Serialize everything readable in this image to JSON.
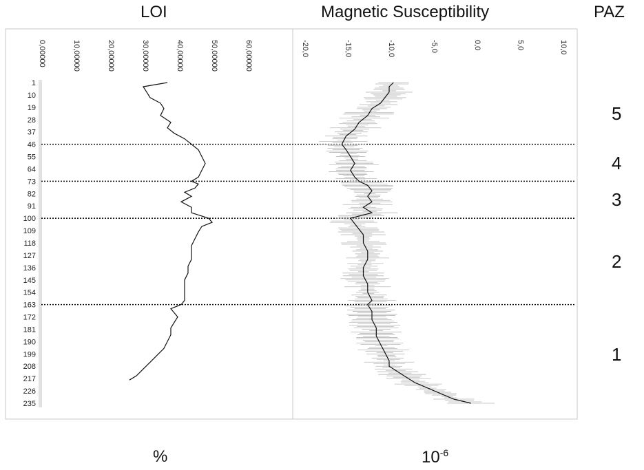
{
  "headers": {
    "loi": "LOI",
    "ms": "Magnetic Susceptibility",
    "paz": "PAZ"
  },
  "units": {
    "loi": "%",
    "ms_base": "10",
    "ms_exp": "-6"
  },
  "zones": [
    {
      "label": "5",
      "from": 1,
      "to": 46
    },
    {
      "label": "4",
      "from": 46,
      "to": 73
    },
    {
      "label": "3",
      "from": 73,
      "to": 100
    },
    {
      "label": "2",
      "from": 100,
      "to": 163
    },
    {
      "label": "1",
      "from": 163,
      "to": 236
    }
  ],
  "chart_data": [
    {
      "type": "line",
      "title": "LOI",
      "xlabel": "%",
      "orientation": "vertical-depth",
      "x_ticks": [
        "0,00000",
        "10,00000",
        "20,00000",
        "30,00000",
        "40,00000",
        "50,00000",
        "60,00000"
      ],
      "xlim": [
        0,
        60
      ],
      "y_ticks": [
        "1",
        "10",
        "19",
        "28",
        "37",
        "46",
        "55",
        "64",
        "73",
        "82",
        "91",
        "100",
        "109",
        "118",
        "127",
        "136",
        "145",
        "154",
        "163",
        "172",
        "181",
        "190",
        "199",
        "208",
        "217",
        "226",
        "235"
      ],
      "ylim": [
        1,
        236
      ],
      "boundaries": [
        46,
        73,
        100,
        163
      ],
      "series": [
        {
          "depth": [
            1,
            4,
            8,
            12,
            16,
            20,
            25,
            30,
            34,
            38,
            42,
            46,
            50,
            55,
            60,
            65,
            70,
            73,
            75,
            78,
            81,
            84,
            88,
            92,
            96,
            100,
            103,
            106,
            110,
            115,
            120,
            125,
            130,
            135,
            140,
            145,
            150,
            155,
            160,
            163,
            166,
            169,
            172,
            176,
            180,
            185,
            190,
            195,
            200,
            205,
            210,
            215,
            218
          ],
          "values": [
            37,
            30,
            31,
            32,
            35,
            36,
            35,
            38,
            37,
            39,
            42,
            44,
            46,
            47,
            48,
            47,
            46,
            44,
            46,
            45,
            42,
            44,
            41,
            44,
            44,
            49,
            50,
            47,
            46,
            45,
            44,
            44,
            44,
            43,
            43,
            42,
            42,
            42,
            42,
            41,
            38,
            39,
            40,
            39,
            38,
            38,
            37,
            36,
            34,
            32,
            30,
            28,
            26
          ]
        }
      ]
    },
    {
      "type": "line",
      "title": "Magnetic Susceptibility",
      "xlabel": "10-6",
      "orientation": "vertical-depth",
      "x_ticks": [
        "-20,0",
        "-15,0",
        "-10,0",
        "-5,0",
        "0,0",
        "5,0",
        "10,0"
      ],
      "xlim": [
        -20,
        10
      ],
      "ylim": [
        1,
        236
      ],
      "boundaries": [
        46,
        73,
        100,
        163
      ],
      "series": [
        {
          "depth": [
            1,
            4,
            8,
            12,
            16,
            20,
            25,
            30,
            35,
            40,
            46,
            50,
            55,
            60,
            65,
            70,
            73,
            76,
            80,
            84,
            88,
            92,
            96,
            100,
            104,
            108,
            112,
            118,
            124,
            130,
            136,
            142,
            148,
            154,
            160,
            163,
            168,
            174,
            180,
            186,
            192,
            198,
            204,
            208,
            212,
            216,
            220,
            224,
            228,
            232,
            235
          ],
          "values": [
            -9.5,
            -10,
            -10,
            -10.5,
            -11,
            -12,
            -12.5,
            -13.5,
            -14,
            -15,
            -15.5,
            -15,
            -14.5,
            -14,
            -14.5,
            -14,
            -13.5,
            -12.5,
            -12,
            -12.5,
            -12,
            -13,
            -12,
            -14.5,
            -14,
            -13.5,
            -13,
            -13,
            -12.5,
            -12.5,
            -13,
            -13,
            -12.5,
            -12.5,
            -12,
            -12.5,
            -12,
            -12,
            -11.5,
            -11.5,
            -11,
            -10.5,
            -10,
            -10,
            -9,
            -8,
            -7,
            -5.5,
            -4,
            -2.5,
            -0.5
          ]
        }
      ]
    }
  ]
}
